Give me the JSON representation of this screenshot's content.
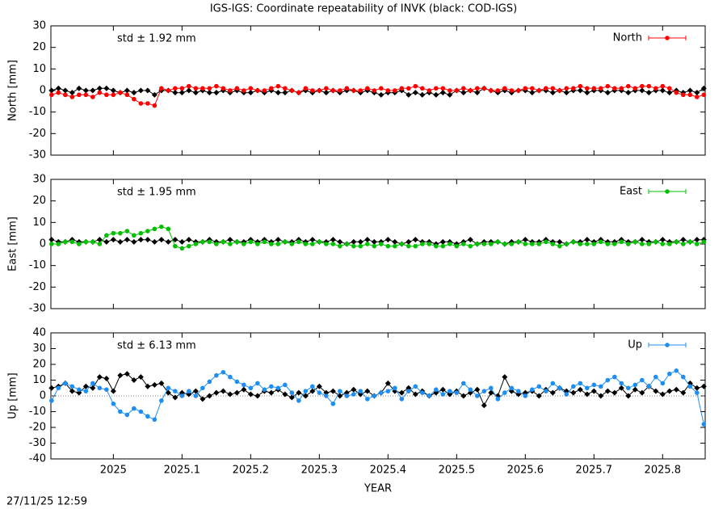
{
  "title": "IGS-IGS: Coordinate repeatability of INVK (black: COD-IGS)",
  "timestamp": "27/11/25 12:59",
  "chart_data": [
    {
      "type": "line",
      "ylabel": "North [mm]",
      "annotation": "std ± 1.92 mm",
      "legend": "upper right",
      "xlim": [
        2024.909,
        2025.862
      ],
      "ylim": [
        -30,
        30
      ],
      "yticks": [
        -30,
        -20,
        -10,
        0,
        10,
        20,
        30
      ],
      "x": [
        2024.91,
        2024.92,
        2024.93,
        2024.94,
        2024.95,
        2024.96,
        2024.97,
        2024.98,
        2024.99,
        2025.0,
        2025.01,
        2025.02,
        2025.03,
        2025.04,
        2025.05,
        2025.06,
        2025.07,
        2025.08,
        2025.09,
        2025.1,
        2025.11,
        2025.12,
        2025.13,
        2025.14,
        2025.15,
        2025.16,
        2025.17,
        2025.18,
        2025.19,
        2025.2,
        2025.21,
        2025.22,
        2025.23,
        2025.24,
        2025.25,
        2025.26,
        2025.27,
        2025.28,
        2025.29,
        2025.3,
        2025.31,
        2025.32,
        2025.33,
        2025.34,
        2025.35,
        2025.36,
        2025.37,
        2025.38,
        2025.39,
        2025.4,
        2025.41,
        2025.42,
        2025.43,
        2025.44,
        2025.45,
        2025.46,
        2025.47,
        2025.48,
        2025.49,
        2025.5,
        2025.51,
        2025.52,
        2025.53,
        2025.54,
        2025.55,
        2025.56,
        2025.57,
        2025.58,
        2025.59,
        2025.6,
        2025.61,
        2025.62,
        2025.63,
        2025.64,
        2025.65,
        2025.66,
        2025.67,
        2025.68,
        2025.69,
        2025.7,
        2025.71,
        2025.72,
        2025.73,
        2025.74,
        2025.75,
        2025.76,
        2025.77,
        2025.78,
        2025.79,
        2025.8,
        2025.81,
        2025.82,
        2025.83,
        2025.84,
        2025.85,
        2025.86
      ],
      "series": [
        {
          "color": "#000000",
          "values": [
            0,
            1,
            0,
            -1,
            1,
            0,
            0,
            1,
            1,
            0,
            -1,
            0,
            -1,
            0,
            0,
            -2,
            0,
            0,
            -1,
            -1,
            0,
            -1,
            0,
            -1,
            -1,
            0,
            -1,
            0,
            -1,
            -1,
            0,
            -1,
            0,
            -1,
            -1,
            0,
            -1,
            0,
            -1,
            0,
            -1,
            0,
            -1,
            0,
            0,
            -1,
            0,
            -1,
            -2,
            -1,
            -1,
            0,
            -2,
            -1,
            -2,
            -1,
            -2,
            -1,
            -2,
            0,
            -1,
            0,
            -1,
            1,
            0,
            -1,
            0,
            -1,
            0,
            0,
            -1,
            0,
            0,
            -1,
            0,
            -1,
            0,
            0,
            -1,
            0,
            0,
            -1,
            0,
            0,
            -1,
            0,
            0,
            -1,
            0,
            0,
            -1,
            0,
            -1,
            0,
            -1,
            1
          ]
        },
        {
          "name": "North",
          "color": "#ff0000",
          "values": [
            -2,
            -1,
            -2,
            -3,
            -2,
            -2,
            -3,
            -1,
            -2,
            -2,
            -1,
            -2,
            -4,
            -6,
            -6,
            -7,
            1,
            0,
            1,
            1,
            2,
            1,
            1,
            1,
            2,
            1,
            0,
            1,
            0,
            1,
            0,
            0,
            1,
            2,
            1,
            0,
            -1,
            1,
            0,
            0,
            1,
            0,
            0,
            1,
            0,
            0,
            1,
            0,
            1,
            0,
            0,
            1,
            1,
            2,
            1,
            0,
            1,
            1,
            0,
            0,
            1,
            0,
            1,
            1,
            0,
            0,
            1,
            0,
            0,
            1,
            1,
            0,
            1,
            1,
            0,
            1,
            1,
            2,
            1,
            1,
            1,
            2,
            1,
            1,
            2,
            1,
            2,
            2,
            1,
            2,
            1,
            -1,
            -2,
            -2,
            -3,
            -2
          ]
        }
      ]
    },
    {
      "type": "line",
      "ylabel": "East [mm]",
      "annotation": "std ± 1.95 mm",
      "legend": "upper right",
      "xlim": [
        2024.909,
        2025.862
      ],
      "ylim": [
        -30,
        30
      ],
      "yticks": [
        -30,
        -20,
        -10,
        0,
        10,
        20,
        30
      ],
      "x": [
        2024.91,
        2024.92,
        2024.93,
        2024.94,
        2024.95,
        2024.96,
        2024.97,
        2024.98,
        2024.99,
        2025.0,
        2025.01,
        2025.02,
        2025.03,
        2025.04,
        2025.05,
        2025.06,
        2025.07,
        2025.08,
        2025.09,
        2025.1,
        2025.11,
        2025.12,
        2025.13,
        2025.14,
        2025.15,
        2025.16,
        2025.17,
        2025.18,
        2025.19,
        2025.2,
        2025.21,
        2025.22,
        2025.23,
        2025.24,
        2025.25,
        2025.26,
        2025.27,
        2025.28,
        2025.29,
        2025.3,
        2025.31,
        2025.32,
        2025.33,
        2025.34,
        2025.35,
        2025.36,
        2025.37,
        2025.38,
        2025.39,
        2025.4,
        2025.41,
        2025.42,
        2025.43,
        2025.44,
        2025.45,
        2025.46,
        2025.47,
        2025.48,
        2025.49,
        2025.5,
        2025.51,
        2025.52,
        2025.53,
        2025.54,
        2025.55,
        2025.56,
        2025.57,
        2025.58,
        2025.59,
        2025.6,
        2025.61,
        2025.62,
        2025.63,
        2025.64,
        2025.65,
        2025.66,
        2025.67,
        2025.68,
        2025.69,
        2025.7,
        2025.71,
        2025.72,
        2025.73,
        2025.74,
        2025.75,
        2025.76,
        2025.77,
        2025.78,
        2025.79,
        2025.8,
        2025.81,
        2025.82,
        2025.83,
        2025.84,
        2025.85,
        2025.86
      ],
      "series": [
        {
          "color": "#000000",
          "values": [
            2,
            1,
            1,
            2,
            1,
            1,
            1,
            2,
            1,
            2,
            1,
            2,
            1,
            2,
            2,
            1,
            2,
            1,
            2,
            1,
            2,
            1,
            1,
            2,
            1,
            1,
            2,
            1,
            1,
            2,
            1,
            2,
            1,
            2,
            1,
            1,
            2,
            1,
            2,
            1,
            1,
            2,
            1,
            0,
            1,
            1,
            2,
            1,
            1,
            2,
            1,
            0,
            1,
            2,
            1,
            1,
            0,
            1,
            1,
            0,
            1,
            2,
            0,
            1,
            1,
            1,
            0,
            1,
            1,
            2,
            1,
            1,
            2,
            1,
            1,
            0,
            1,
            1,
            2,
            1,
            2,
            1,
            1,
            2,
            1,
            1,
            2,
            1,
            1,
            2,
            1,
            1,
            2,
            1,
            2,
            2
          ]
        },
        {
          "name": "East",
          "color": "#00c000",
          "values": [
            0,
            0,
            1,
            1,
            0,
            1,
            1,
            0,
            4,
            5,
            5,
            6,
            4,
            5,
            6,
            7,
            8,
            7,
            -1,
            -2,
            -1,
            0,
            1,
            1,
            0,
            1,
            0,
            1,
            0,
            1,
            0,
            1,
            0,
            0,
            1,
            0,
            1,
            0,
            0,
            1,
            0,
            0,
            -1,
            0,
            -1,
            -1,
            0,
            -1,
            0,
            -1,
            -1,
            0,
            -1,
            -1,
            0,
            0,
            -1,
            -1,
            0,
            -1,
            0,
            -1,
            0,
            0,
            0,
            1,
            0,
            0,
            1,
            0,
            0,
            0,
            1,
            0,
            -1,
            0,
            1,
            0,
            0,
            0,
            1,
            0,
            0,
            1,
            0,
            1,
            0,
            0,
            1,
            0,
            0,
            1,
            0,
            1,
            0,
            1
          ]
        }
      ]
    },
    {
      "type": "line",
      "ylabel": "Up [mm]",
      "xlabel": "YEAR",
      "annotation": "std ± 6.13 mm",
      "legend": "upper right",
      "zero_line": true,
      "xlim": [
        2024.909,
        2025.862
      ],
      "ylim": [
        -40,
        40
      ],
      "yticks": [
        -40,
        -30,
        -20,
        -10,
        0,
        10,
        20,
        30,
        40
      ],
      "xticks": [
        2025,
        2025.1,
        2025.2,
        2025.3,
        2025.4,
        2025.5,
        2025.6,
        2025.7,
        2025.8
      ],
      "x": [
        2024.91,
        2024.92,
        2024.93,
        2024.94,
        2024.95,
        2024.96,
        2024.97,
        2024.98,
        2024.99,
        2025.0,
        2025.01,
        2025.02,
        2025.03,
        2025.04,
        2025.05,
        2025.06,
        2025.07,
        2025.08,
        2025.09,
        2025.1,
        2025.11,
        2025.12,
        2025.13,
        2025.14,
        2025.15,
        2025.16,
        2025.17,
        2025.18,
        2025.19,
        2025.2,
        2025.21,
        2025.22,
        2025.23,
        2025.24,
        2025.25,
        2025.26,
        2025.27,
        2025.28,
        2025.29,
        2025.3,
        2025.31,
        2025.32,
        2025.33,
        2025.34,
        2025.35,
        2025.36,
        2025.37,
        2025.38,
        2025.39,
        2025.4,
        2025.41,
        2025.42,
        2025.43,
        2025.44,
        2025.45,
        2025.46,
        2025.47,
        2025.48,
        2025.49,
        2025.5,
        2025.51,
        2025.52,
        2025.53,
        2025.54,
        2025.55,
        2025.56,
        2025.57,
        2025.58,
        2025.59,
        2025.6,
        2025.61,
        2025.62,
        2025.63,
        2025.64,
        2025.65,
        2025.66,
        2025.67,
        2025.68,
        2025.69,
        2025.7,
        2025.71,
        2025.72,
        2025.73,
        2025.74,
        2025.75,
        2025.76,
        2025.77,
        2025.78,
        2025.79,
        2025.8,
        2025.81,
        2025.82,
        2025.83,
        2025.84,
        2025.85,
        2025.86
      ],
      "series": [
        {
          "color": "#000000",
          "values": [
            5,
            6,
            8,
            3,
            2,
            6,
            5,
            12,
            11,
            3,
            13,
            14,
            10,
            12,
            6,
            7,
            8,
            2,
            -1,
            2,
            1,
            3,
            -2,
            0,
            2,
            3,
            1,
            2,
            4,
            1,
            0,
            3,
            2,
            4,
            1,
            -1,
            2,
            0,
            3,
            6,
            2,
            3,
            0,
            2,
            4,
            1,
            3,
            0,
            2,
            8,
            3,
            2,
            5,
            1,
            3,
            0,
            2,
            4,
            1,
            3,
            0,
            2,
            4,
            -6,
            2,
            0,
            12,
            3,
            1,
            2,
            3,
            0,
            4,
            2,
            5,
            3,
            2,
            4,
            1,
            3,
            0,
            3,
            2,
            5,
            0,
            4,
            2,
            6,
            3,
            1,
            3,
            4,
            2,
            8,
            5,
            6
          ]
        },
        {
          "name": "Up",
          "color": "#1e8ff0",
          "values": [
            -3,
            5,
            8,
            6,
            4,
            3,
            8,
            5,
            4,
            -5,
            -10,
            -12,
            -8,
            -10,
            -13,
            -15,
            -3,
            5,
            3,
            0,
            3,
            0,
            5,
            9,
            13,
            15,
            12,
            9,
            7,
            5,
            8,
            4,
            6,
            5,
            7,
            2,
            -3,
            3,
            6,
            2,
            0,
            -5,
            3,
            0,
            1,
            3,
            -2,
            0,
            2,
            3,
            5,
            -2,
            3,
            6,
            2,
            0,
            4,
            1,
            3,
            2,
            8,
            4,
            0,
            3,
            5,
            -2,
            2,
            5,
            3,
            0,
            4,
            6,
            3,
            8,
            5,
            1,
            6,
            8,
            5,
            7,
            6,
            10,
            12,
            8,
            5,
            7,
            10,
            6,
            12,
            8,
            14,
            16,
            12,
            6,
            2,
            -18
          ]
        }
      ]
    }
  ]
}
